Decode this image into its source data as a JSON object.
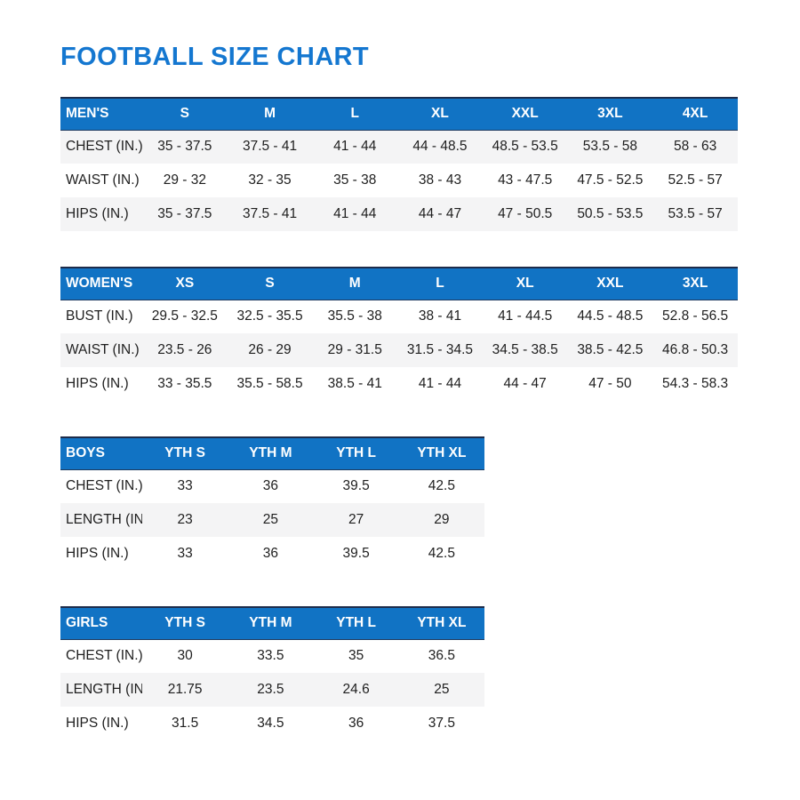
{
  "page": {
    "title": "FOOTBALL SIZE CHART"
  },
  "colors": {
    "title_blue": "#1477d0",
    "header_blue": "#1173c4",
    "header_top_border": "#1d2c4b",
    "row_alt_gray": "#f4f4f5",
    "body_text": "#1e1e1e"
  },
  "tables": [
    {
      "name": "MEN'S",
      "size": "large",
      "columns": [
        "S",
        "M",
        "L",
        "XL",
        "XXL",
        "3XL",
        "4XL"
      ],
      "shaded_rows": [
        0,
        2
      ],
      "rows": [
        {
          "label": "CHEST (IN.)",
          "values": [
            "35 - 37.5",
            "37.5 - 41",
            "41 - 44",
            "44 - 48.5",
            "48.5 - 53.5",
            "53.5 - 58",
            "58 - 63"
          ]
        },
        {
          "label": "WAIST (IN.)",
          "values": [
            "29 - 32",
            "32 - 35",
            "35 - 38",
            "38 - 43",
            "43 - 47.5",
            "47.5 - 52.5",
            "52.5 - 57"
          ]
        },
        {
          "label": "HIPS (IN.)",
          "values": [
            "35 - 37.5",
            "37.5 - 41",
            "41 - 44",
            "44 - 47",
            "47 - 50.5",
            "50.5 - 53.5",
            "53.5 - 57"
          ]
        }
      ]
    },
    {
      "name": "WOMEN'S",
      "size": "large",
      "columns": [
        "XS",
        "S",
        "M",
        "L",
        "XL",
        "XXL",
        "3XL"
      ],
      "shaded_rows": [
        1
      ],
      "rows": [
        {
          "label": "BUST (IN.)",
          "values": [
            "29.5 - 32.5",
            "32.5 - 35.5",
            "35.5 - 38",
            "38 - 41",
            "41 - 44.5",
            "44.5 - 48.5",
            "52.8 - 56.5"
          ]
        },
        {
          "label": "WAIST (IN.)",
          "values": [
            "23.5 - 26",
            "26 - 29",
            "29 - 31.5",
            "31.5 - 34.5",
            "34.5 - 38.5",
            "38.5 - 42.5",
            "46.8 - 50.3"
          ]
        },
        {
          "label": "HIPS (IN.)",
          "values": [
            "33 - 35.5",
            "35.5 - 58.5",
            "38.5 - 41",
            "41 - 44",
            "44 - 47",
            "47 - 50",
            "54.3 - 58.3"
          ]
        }
      ]
    },
    {
      "name": "BOYS",
      "size": "small",
      "columns": [
        "YTH S",
        "YTH M",
        "YTH L",
        "YTH XL"
      ],
      "shaded_rows": [
        1
      ],
      "rows": [
        {
          "label": "CHEST (IN.)",
          "values": [
            "33",
            "36",
            "39.5",
            "42.5"
          ]
        },
        {
          "label": "LENGTH (IN.)",
          "values": [
            "23",
            "25",
            "27",
            "29"
          ]
        },
        {
          "label": "HIPS (IN.)",
          "values": [
            "33",
            "36",
            "39.5",
            "42.5"
          ]
        }
      ]
    },
    {
      "name": "GIRLS",
      "size": "small",
      "columns": [
        "YTH S",
        "YTH M",
        "YTH L",
        "YTH XL"
      ],
      "shaded_rows": [
        1
      ],
      "rows": [
        {
          "label": "CHEST (IN.)",
          "values": [
            "30",
            "33.5",
            "35",
            "36.5"
          ]
        },
        {
          "label": "LENGTH (IN.)",
          "values": [
            "21.75",
            "23.5",
            "24.6",
            "25"
          ]
        },
        {
          "label": "HIPS (IN.)",
          "values": [
            "31.5",
            "34.5",
            "36",
            "37.5"
          ]
        }
      ]
    }
  ]
}
